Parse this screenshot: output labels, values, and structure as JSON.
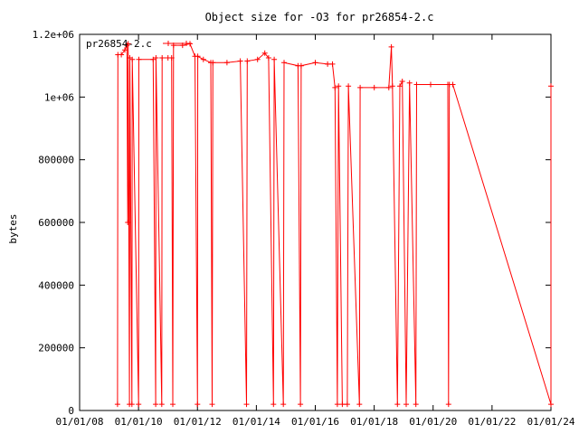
{
  "chart_data": {
    "type": "line",
    "title": "Object size for -O3 for pr26854-2.c",
    "xlabel": "",
    "ylabel": "bytes",
    "xlim": [
      "2008-01-01",
      "2024-01-01"
    ],
    "ylim": [
      0,
      1200000
    ],
    "x_ticks": [
      "01/01/08",
      "01/01/10",
      "01/01/12",
      "01/01/14",
      "01/01/16",
      "01/01/18",
      "01/01/20",
      "01/01/22",
      "01/01/24"
    ],
    "y_ticks": [
      "0",
      "200000",
      "400000",
      "600000",
      "800000",
      "1e+06",
      "1.2e+06"
    ],
    "grid": false,
    "legend_position": "top-left",
    "series": [
      {
        "name": "pr26854-2.c",
        "color": "#ff0000",
        "marker": "plus",
        "points": [
          [
            "2009-04-15",
            20000
          ],
          [
            "2009-04-20",
            1135000
          ],
          [
            "2009-06-01",
            1135000
          ],
          [
            "2009-07-15",
            1150000
          ],
          [
            "2009-08-10",
            1165000
          ],
          [
            "2009-08-20",
            600000
          ],
          [
            "2009-08-25",
            1170000
          ],
          [
            "2009-09-10",
            20000
          ],
          [
            "2009-09-15",
            1125000
          ],
          [
            "2009-10-10",
            20000
          ],
          [
            "2009-10-15",
            1120000
          ],
          [
            "2010-01-01",
            20000
          ],
          [
            "2010-01-05",
            1120000
          ],
          [
            "2010-07-01",
            1120000
          ],
          [
            "2010-08-01",
            20000
          ],
          [
            "2010-08-05",
            1125000
          ],
          [
            "2010-10-15",
            20000
          ],
          [
            "2010-10-20",
            1125000
          ],
          [
            "2011-01-01",
            1125000
          ],
          [
            "2011-02-15",
            1125000
          ],
          [
            "2011-03-01",
            20000
          ],
          [
            "2011-03-10",
            1165000
          ],
          [
            "2011-07-01",
            1165000
          ],
          [
            "2011-10-01",
            1170000
          ],
          [
            "2011-12-01",
            1130000
          ],
          [
            "2012-01-01",
            20000
          ],
          [
            "2012-01-05",
            1130000
          ],
          [
            "2012-03-15",
            1120000
          ],
          [
            "2012-06-15",
            1110000
          ],
          [
            "2012-07-01",
            20000
          ],
          [
            "2012-07-10",
            1110000
          ],
          [
            "2013-01-01",
            1110000
          ],
          [
            "2013-06-15",
            1115000
          ],
          [
            "2013-09-01",
            20000
          ],
          [
            "2013-09-10",
            1115000
          ],
          [
            "2014-01-15",
            1120000
          ],
          [
            "2014-04-15",
            1140000
          ],
          [
            "2014-06-01",
            1125000
          ],
          [
            "2014-08-01",
            20000
          ],
          [
            "2014-08-10",
            1120000
          ],
          [
            "2014-12-01",
            20000
          ],
          [
            "2014-12-10",
            1110000
          ],
          [
            "2015-06-01",
            1100000
          ],
          [
            "2015-07-01",
            20000
          ],
          [
            "2015-07-10",
            1100000
          ],
          [
            "2016-01-01",
            1110000
          ],
          [
            "2016-06-01",
            1105000
          ],
          [
            "2016-08-01",
            1105000
          ],
          [
            "2016-09-01",
            1030000
          ],
          [
            "2016-10-01",
            20000
          ],
          [
            "2016-10-15",
            1035000
          ],
          [
            "2016-12-01",
            20000
          ],
          [
            "2017-02-01",
            20000
          ],
          [
            "2017-02-15",
            1035000
          ],
          [
            "2017-07-01",
            20000
          ],
          [
            "2017-07-10",
            1030000
          ],
          [
            "2018-01-01",
            1030000
          ],
          [
            "2018-07-01",
            1030000
          ],
          [
            "2018-08-01",
            1160000
          ],
          [
            "2018-08-15",
            1035000
          ],
          [
            "2018-10-15",
            20000
          ],
          [
            "2018-11-15",
            1035000
          ],
          [
            "2018-12-15",
            1050000
          ],
          [
            "2019-02-01",
            20000
          ],
          [
            "2019-03-15",
            1045000
          ],
          [
            "2019-06-01",
            20000
          ],
          [
            "2019-06-10",
            1040000
          ],
          [
            "2019-12-01",
            1040000
          ],
          [
            "2020-07-01",
            1040000
          ],
          [
            "2020-07-10",
            20000
          ],
          [
            "2020-07-20",
            1040000
          ],
          [
            "2020-09-01",
            1040000
          ],
          [
            "2024-01-01",
            20000
          ],
          [
            "2024-01-10",
            1035000
          ]
        ]
      }
    ]
  }
}
